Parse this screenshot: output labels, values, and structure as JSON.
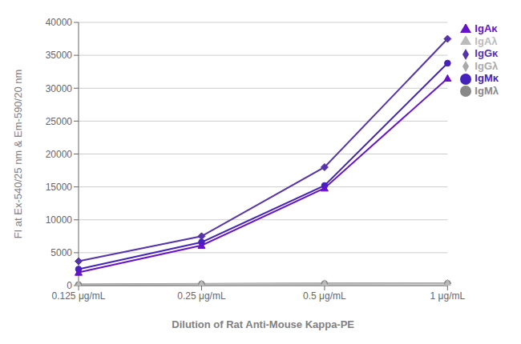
{
  "chart_data": {
    "type": "line",
    "categories": [
      "0.125 μg/mL",
      "0.25 μg/mL",
      "0.5 μg/mL",
      "1 μg/mL"
    ],
    "series": [
      {
        "name": "IgGκ",
        "color": "#5533AA",
        "marker": "diamond",
        "values": [
          3700,
          7500,
          18000,
          37500
        ]
      },
      {
        "name": "IgMκ",
        "color": "#4422BB",
        "marker": "circle",
        "values": [
          2500,
          6600,
          15200,
          33800
        ]
      },
      {
        "name": "IgAκ",
        "color": "#6611CC",
        "marker": "triangle",
        "values": [
          2000,
          6100,
          14800,
          31500
        ]
      },
      {
        "name": "IgGλ",
        "color": "#aaaaaa",
        "marker": "diamond",
        "values": [
          180,
          280,
          330,
          380
        ]
      },
      {
        "name": "IgMλ",
        "color": "#888888",
        "marker": "circle",
        "values": [
          150,
          250,
          300,
          340
        ]
      },
      {
        "name": "IgAλ",
        "color": "#bbbbbb",
        "marker": "triangle",
        "values": [
          100,
          200,
          270,
          310
        ]
      }
    ],
    "xlabel": "Dilution of Rat Anti-Mouse Kappa-PE",
    "ylabel": "FI at Ex-540/25 nm & Em-590/20 nm",
    "ylim": [
      0,
      40000
    ],
    "yticks": [
      0,
      5000,
      10000,
      15000,
      20000,
      25000,
      30000,
      35000,
      40000
    ],
    "grid": true,
    "legend": "right"
  }
}
